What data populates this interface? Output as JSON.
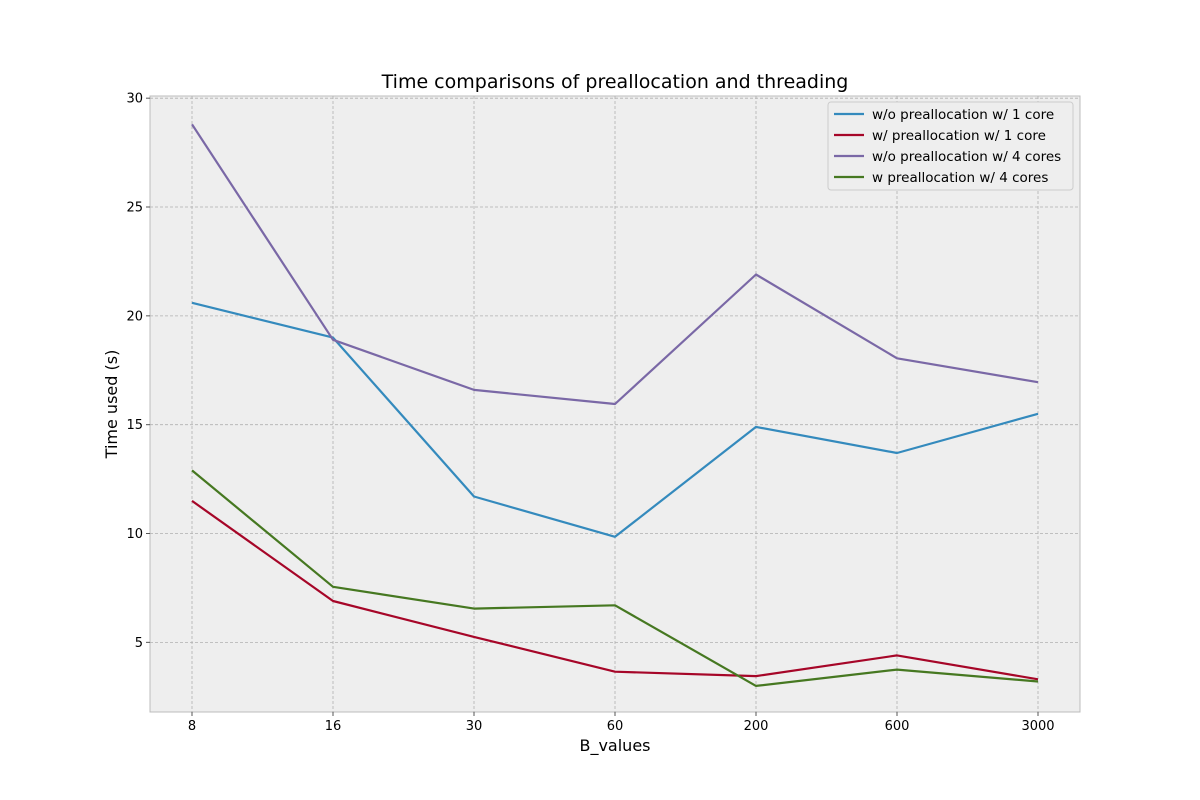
{
  "chart_data": {
    "type": "line",
    "title": "Time comparisons of preallocation and threading",
    "xlabel": "B_values",
    "ylabel": "Time used (s)",
    "categories": [
      "8",
      "16",
      "30",
      "60",
      "200",
      "600",
      "3000"
    ],
    "yticks": [
      "5",
      "10",
      "15",
      "20",
      "25",
      "30"
    ],
    "ylim": [
      1.8,
      30.1
    ],
    "grid": true,
    "legend_position": "top-right",
    "series": [
      {
        "name": "w/o preallocation w/ 1 core",
        "color": "#348ABD",
        "values": [
          20.6,
          19.0,
          11.7,
          9.85,
          14.9,
          13.7,
          15.5
        ]
      },
      {
        "name": "w/ preallocation w/ 1 core",
        "color": "#A60628",
        "values": [
          11.5,
          6.9,
          5.25,
          3.65,
          3.45,
          4.4,
          3.3
        ]
      },
      {
        "name": "w/o preallocation w/ 4 cores",
        "color": "#7A68A6",
        "values": [
          28.8,
          18.9,
          16.6,
          15.95,
          21.9,
          18.05,
          16.95
        ]
      },
      {
        "name": "w preallocation w/ 4 cores",
        "color": "#467821",
        "values": [
          12.9,
          7.55,
          6.55,
          6.7,
          3.0,
          3.75,
          3.2
        ]
      }
    ]
  }
}
